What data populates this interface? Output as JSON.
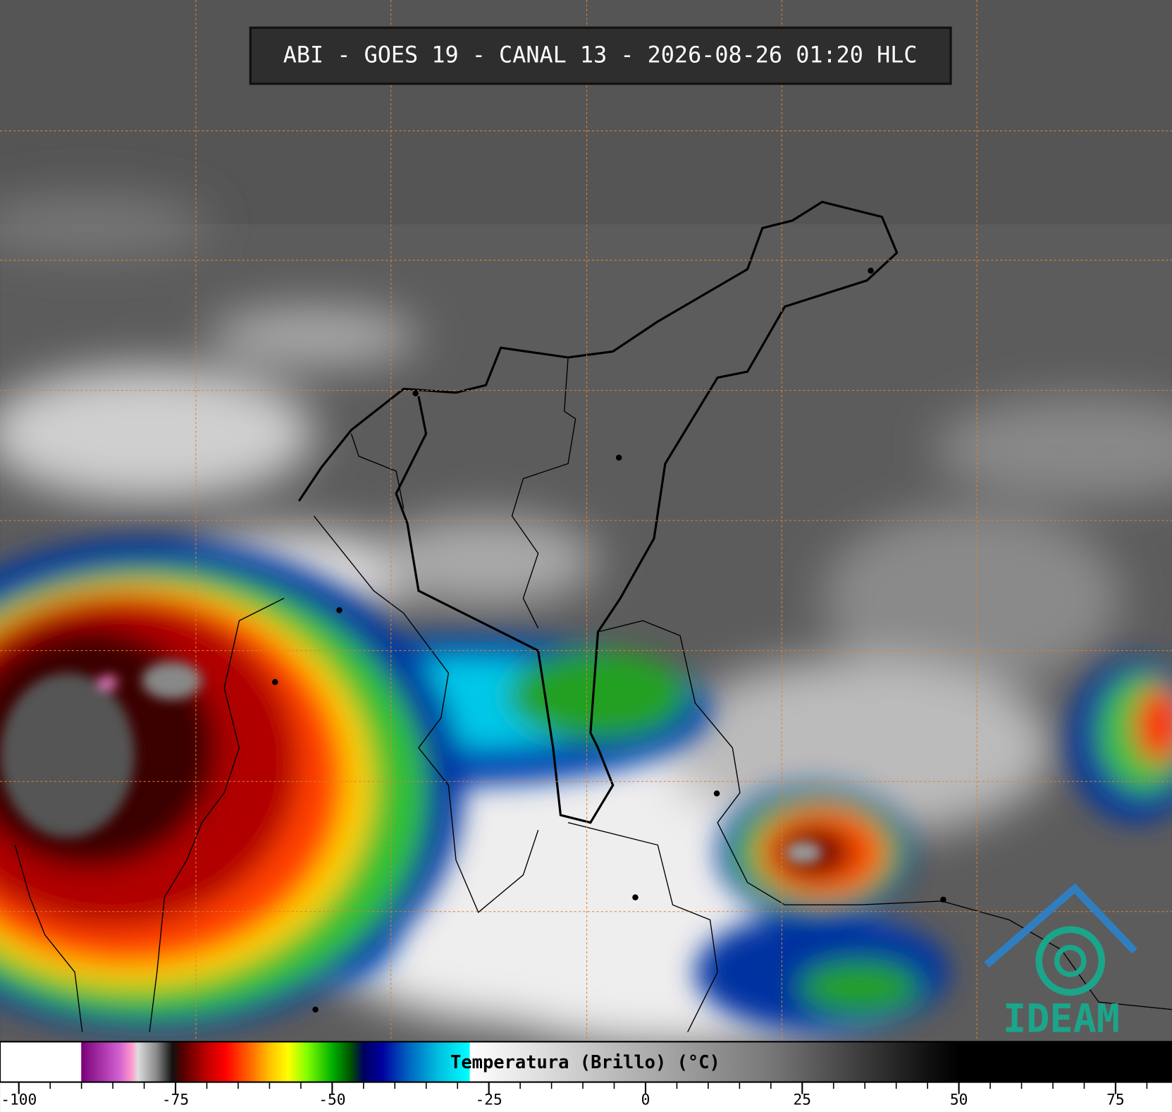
{
  "header": {
    "title": "ABI - GOES 19 - CANAL 13 - 2026-08-26 01:20 HLC"
  },
  "logo": {
    "text": "IDEAM"
  },
  "colorbar": {
    "label": "Temperatura (Brillo) (°C)",
    "xlim": [
      -103,
      84
    ],
    "xticks": [
      -100,
      -75,
      -50,
      -25,
      0,
      25,
      50,
      75
    ],
    "colormap": [
      {
        "value": -103,
        "color": "#ffffff"
      },
      {
        "value": -90.1,
        "color": "#ffffff"
      },
      {
        "value": -90,
        "color": "#7a007a"
      },
      {
        "value": -84,
        "color": "#d060d0"
      },
      {
        "value": -82,
        "color": "#ff99cc"
      },
      {
        "value": -81,
        "color": "#dddddd"
      },
      {
        "value": -78,
        "color": "#888888"
      },
      {
        "value": -75.5,
        "color": "#111111"
      },
      {
        "value": -74,
        "color": "#500000"
      },
      {
        "value": -70,
        "color": "#c00000"
      },
      {
        "value": -67,
        "color": "#ff0000"
      },
      {
        "value": -63,
        "color": "#ff6a00"
      },
      {
        "value": -60,
        "color": "#ffc000"
      },
      {
        "value": -57,
        "color": "#ffff00"
      },
      {
        "value": -54,
        "color": "#80ff00"
      },
      {
        "value": -50,
        "color": "#00b000"
      },
      {
        "value": -47,
        "color": "#005000"
      },
      {
        "value": -45,
        "color": "#000060"
      },
      {
        "value": -42,
        "color": "#0000a0"
      },
      {
        "value": -38,
        "color": "#0060c0"
      },
      {
        "value": -33,
        "color": "#00c0e0"
      },
      {
        "value": -28.1,
        "color": "#00ffff"
      },
      {
        "value": -28,
        "color": "#ffffff"
      },
      {
        "value": -5,
        "color": "#bbbbbb"
      },
      {
        "value": 20,
        "color": "#777777"
      },
      {
        "value": 45,
        "color": "#111111"
      },
      {
        "value": 50,
        "color": "#000000"
      },
      {
        "value": 84,
        "color": "#000000"
      }
    ]
  }
}
